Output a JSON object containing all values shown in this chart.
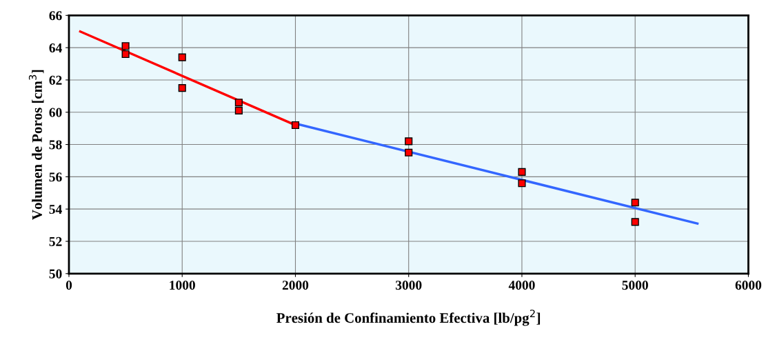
{
  "chart_data": {
    "type": "scatter",
    "xlabel": "Presión de Confinamiento Efectiva [lb/pg$^{2}$]",
    "ylabel": "Volumen de Poros [cm$^{3}$]",
    "xlim": [
      0,
      6000
    ],
    "ylim": [
      50,
      66
    ],
    "xticks": [
      0,
      1000,
      2000,
      3000,
      4000,
      5000,
      6000
    ],
    "yticks": [
      50,
      52,
      54,
      56,
      58,
      60,
      62,
      64,
      66
    ],
    "grid": true,
    "marker": "square",
    "series": [
      {
        "color": "#ff0000",
        "x": [
          500,
          500,
          1000,
          1000,
          1500,
          1500,
          2000,
          3000,
          3000,
          4000,
          4000,
          5000,
          5000
        ],
        "values": [
          64.1,
          63.6,
          63.4,
          61.5,
          60.6,
          60.1,
          59.2,
          58.2,
          57.5,
          56.3,
          55.6,
          54.4,
          53.2
        ]
      },
      {
        "type": "line",
        "color": "#ff0000",
        "marker": "none",
        "x": [
          100,
          2000
        ],
        "values": [
          65.0,
          59.2
        ]
      },
      {
        "type": "line",
        "color": "#3366ff",
        "marker": "none",
        "x": [
          2000,
          5550
        ],
        "values": [
          59.3,
          53.1
        ]
      }
    ]
  }
}
